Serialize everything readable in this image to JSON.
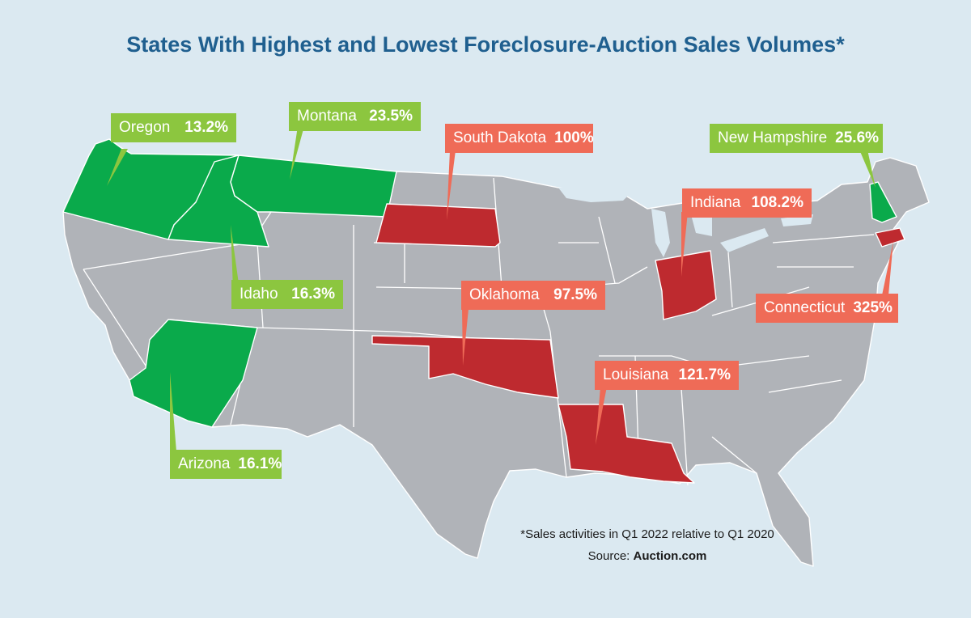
{
  "title": "States With Highest and Lowest Foreclosure-Auction Sales Volumes*",
  "colors": {
    "low": "#0aaa4b",
    "high": "#be2a2f",
    "other": "#b0b3b8",
    "low_label": "#8cc63f",
    "high_label": "#ef6b57",
    "background": "#dbe9f1",
    "title": "#1f5f8f"
  },
  "callouts": [
    {
      "state": "Oregon",
      "value": "13.2%",
      "group": "low"
    },
    {
      "state": "Montana",
      "value": "23.5%",
      "group": "low"
    },
    {
      "state": "South Dakota",
      "value": "100%",
      "group": "high"
    },
    {
      "state": "New Hampshire",
      "value": "25.6%",
      "group": "low"
    },
    {
      "state": "Indiana",
      "value": "108.2%",
      "group": "high"
    },
    {
      "state": "Idaho",
      "value": "16.3%",
      "group": "low"
    },
    {
      "state": "Oklahoma",
      "value": "97.5%",
      "group": "high"
    },
    {
      "state": "Connecticut",
      "value": "325%",
      "group": "high"
    },
    {
      "state": "Louisiana",
      "value": "121.7%",
      "group": "high"
    },
    {
      "state": "Arizona",
      "value": "16.1%",
      "group": "low"
    }
  ],
  "footnote": "*Sales activities in Q1 2022 relative to Q1 2020",
  "source_label": "Source:",
  "source_name": "Auction.com"
}
